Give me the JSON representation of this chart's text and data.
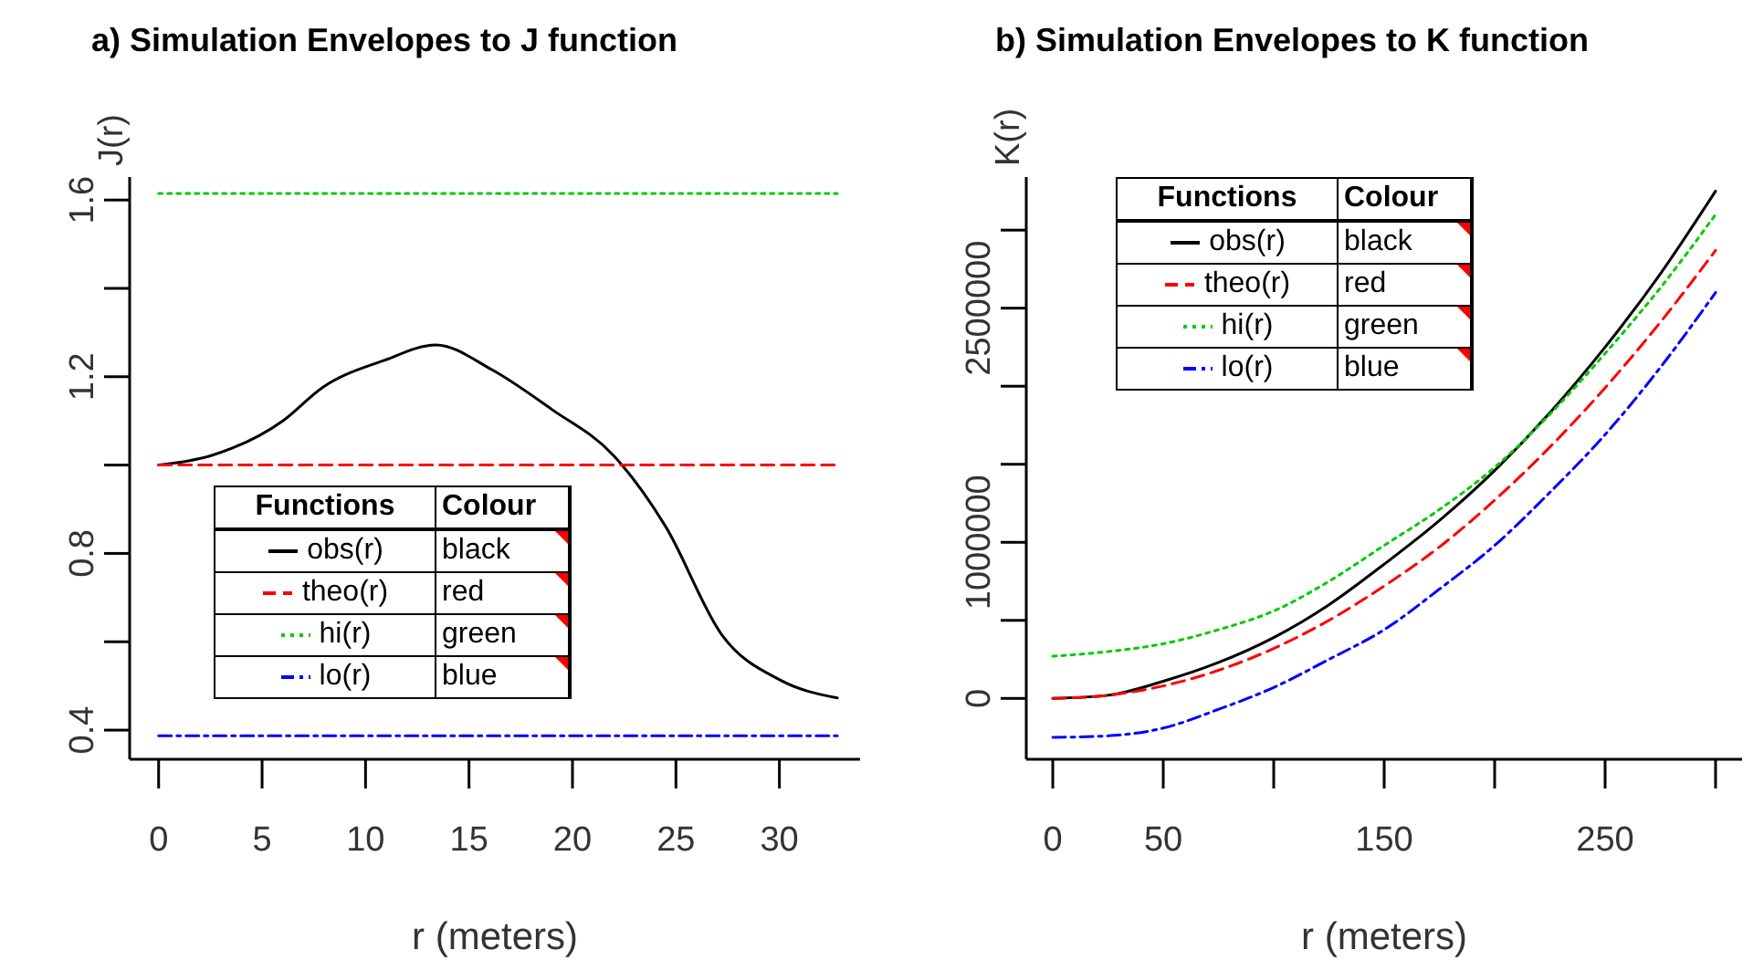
{
  "chart_data": [
    {
      "type": "line",
      "title": "a) Simulation Envelopes to J function",
      "xlabel": "r (meters)",
      "ylabel": "J(r)",
      "legend_title": "Functions",
      "annotations": [
        "Colour",
        "black",
        "red",
        "green",
        "blue"
      ],
      "legend": "bottom left",
      "marker": "none",
      "grid": false,
      "x": [
        0,
        2.5,
        6,
        7.9,
        10.9,
        13.4,
        16.1,
        19,
        22,
        24.5,
        27.2,
        30.1,
        32.8
      ],
      "xlim": [
        -1.4,
        33.9
      ],
      "xticks": [
        0,
        5,
        10,
        15,
        20,
        25,
        30
      ],
      "ylim": [
        0.334,
        1.652
      ],
      "yticks": [
        0.4,
        {
          "value": 0.6,
          "label": null
        },
        0.8,
        {
          "value": 1.0,
          "label": null
        },
        1.2,
        {
          "value": 1.4,
          "label": null
        },
        1.6
      ],
      "series": [
        {
          "name": "obs(r)",
          "color": "#000000",
          "line_style": "solid",
          "values": [
            1.0,
            1.021,
            1.1,
            1.175,
            1.237,
            1.272,
            1.216,
            1.126,
            1.021,
            0.861,
            0.617,
            0.512,
            0.473
          ]
        },
        {
          "name": "theo(r)",
          "color": "#ff0000",
          "line_style": "dashed",
          "values": [
            1.0,
            1.0,
            1.0,
            1.0,
            1.0,
            1.0,
            1.0,
            1.0,
            1.0,
            1.0,
            1.0,
            1.0,
            1.0
          ]
        },
        {
          "name": "hi(r)",
          "color": "#00cc00",
          "line_style": "dotted",
          "values": [
            1.615,
            1.615,
            1.615,
            1.615,
            1.615,
            1.615,
            1.615,
            1.615,
            1.615,
            1.615,
            1.615,
            1.615,
            1.615
          ]
        },
        {
          "name": "lo(r)",
          "color": "#0000ff",
          "line_style": "dashdot",
          "values": [
            0.387,
            0.387,
            0.387,
            0.387,
            0.387,
            0.387,
            0.387,
            0.387,
            0.387,
            0.387,
            0.387,
            0.387,
            0.387
          ]
        }
      ]
    },
    {
      "type": "line",
      "title": "b) Simulation Envelopes to K function",
      "xlabel": "r (meters)",
      "ylabel": "K(r)",
      "legend_title": "Functions",
      "annotations": [
        "Colour",
        "black",
        "red",
        "green",
        "blue"
      ],
      "legend": "top left",
      "marker": "none",
      "grid": false,
      "x": [
        0,
        25,
        50,
        75,
        100,
        125,
        150,
        175,
        200,
        225,
        250,
        275,
        300
      ],
      "xlim": [
        -12,
        312
      ],
      "xticks": [
        0,
        50,
        {
          "value": 100,
          "label": null
        },
        150,
        {
          "value": 200,
          "label": null
        },
        250,
        {
          "value": 300,
          "label": null
        }
      ],
      "ylim": [
        -390000,
        3340000
      ],
      "yticks": [
        0,
        {
          "value": 500000,
          "label": null
        },
        1000000,
        {
          "value": 1500000,
          "label": null
        },
        {
          "value": 2000000,
          "label": null
        },
        2500000,
        {
          "value": 3000000,
          "label": null
        }
      ],
      "series": [
        {
          "name": "obs(r)",
          "color": "#000000",
          "line_style": "solid",
          "values": [
            0,
            20000,
            110000,
            230000,
            390000,
            600000,
            860000,
            1140000,
            1460000,
            1830000,
            2250000,
            2720000,
            3250000
          ]
        },
        {
          "name": "theo(r)",
          "color": "#ff0000",
          "line_style": "dashed",
          "values": [
            0,
            20000,
            80000,
            180000,
            320000,
            500000,
            720000,
            970000,
            1270000,
            1610000,
            1990000,
            2410000,
            2870000
          ]
        },
        {
          "name": "hi(r)",
          "color": "#00cc00",
          "line_style": "dotted",
          "values": [
            270000,
            300000,
            350000,
            440000,
            560000,
            750000,
            980000,
            1210000,
            1480000,
            1820000,
            2210000,
            2630000,
            3100000
          ]
        },
        {
          "name": "lo(r)",
          "color": "#0000ff",
          "line_style": "dashdot",
          "values": [
            -250000,
            -240000,
            -190000,
            -70000,
            70000,
            250000,
            440000,
            700000,
            980000,
            1320000,
            1690000,
            2120000,
            2600000
          ]
        }
      ]
    }
  ]
}
